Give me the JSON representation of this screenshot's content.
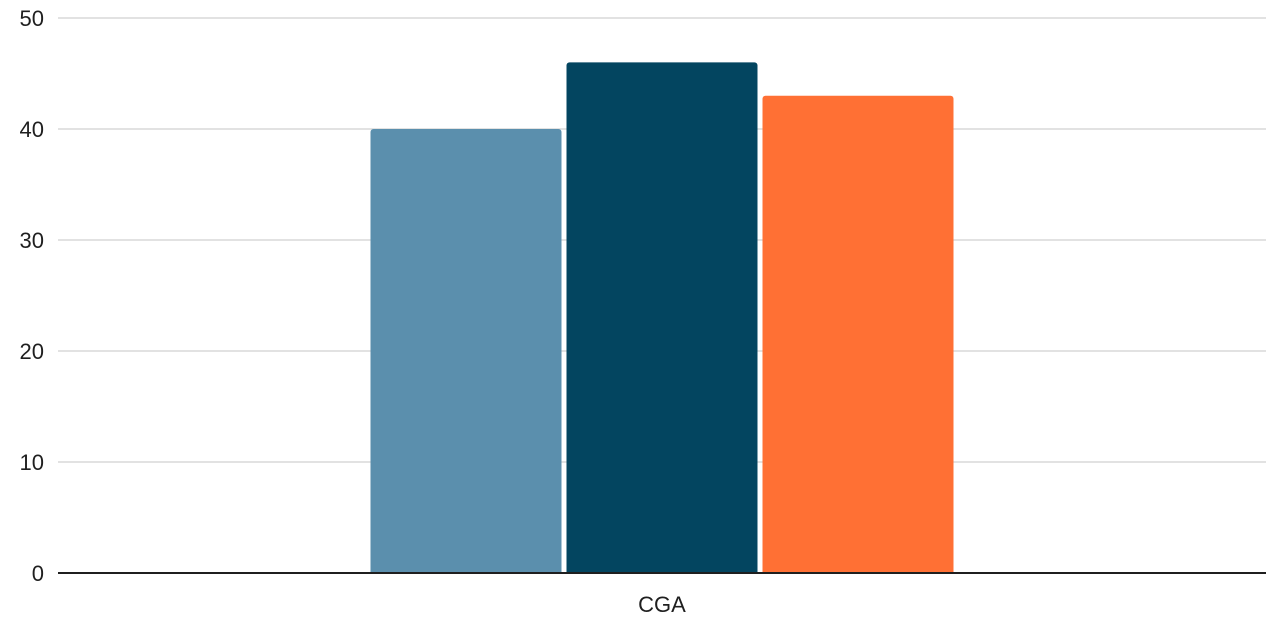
{
  "chart_data": {
    "type": "bar",
    "categories": [
      "CGA"
    ],
    "series": [
      {
        "values": [
          40
        ],
        "color": "#5b8fad"
      },
      {
        "values": [
          46
        ],
        "color": "#034560"
      },
      {
        "values": [
          43
        ],
        "color": "#ff7034"
      }
    ],
    "title": "",
    "xlabel": "",
    "ylabel": "",
    "ylim": [
      0,
      50
    ],
    "yticks": [
      0,
      10,
      20,
      30,
      40,
      50
    ],
    "grid": true,
    "legend": "none",
    "gridline_color": "#d9d9d9",
    "axis_color": "#1f1f1f"
  }
}
